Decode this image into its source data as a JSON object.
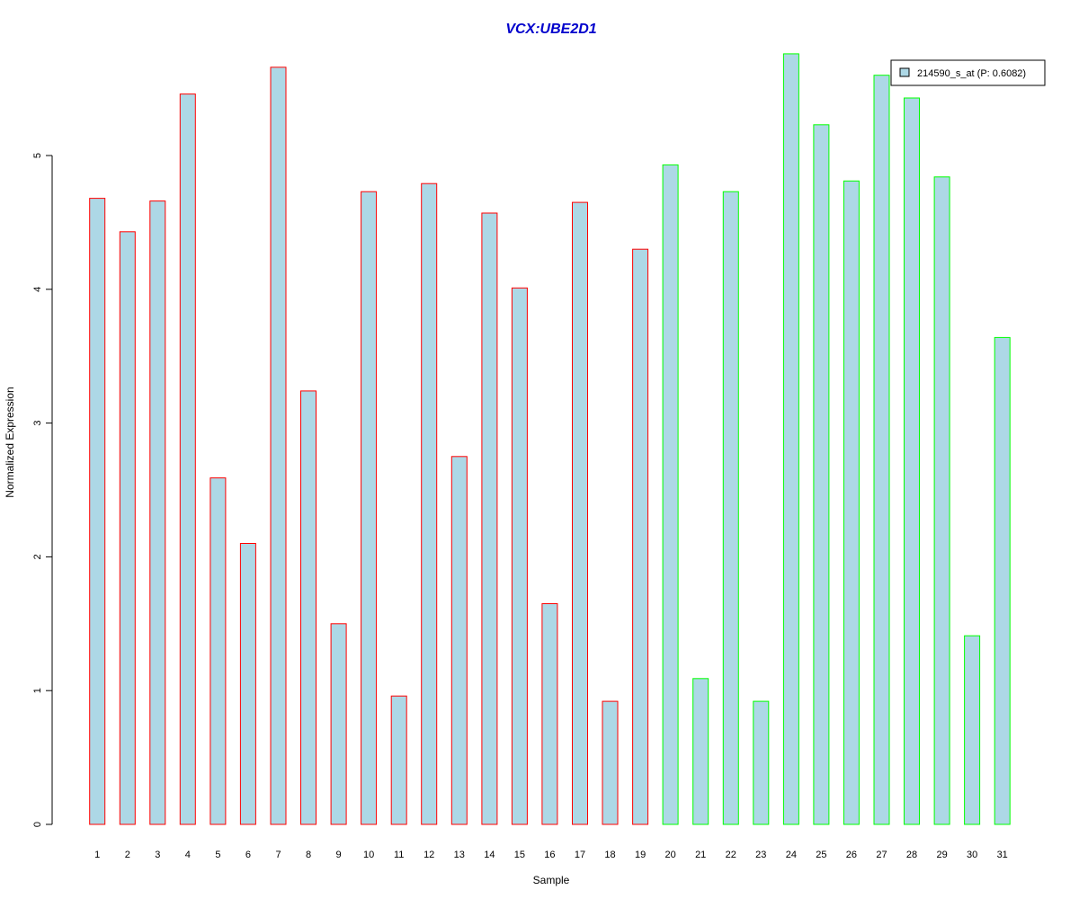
{
  "chart_data": {
    "type": "bar",
    "title": "VCX:UBE2D1",
    "title_color": "#0000CC",
    "xlabel": "Sample",
    "ylabel": "Normalized Expression",
    "ylim": [
      0,
      5.8
    ],
    "yticks": [
      0,
      1,
      2,
      3,
      4,
      5
    ],
    "grid": false,
    "legend_position": "top-right",
    "fill_color": "#ADD8E6",
    "categories": [
      "1",
      "2",
      "3",
      "4",
      "5",
      "6",
      "7",
      "8",
      "9",
      "10",
      "11",
      "12",
      "13",
      "14",
      "15",
      "16",
      "17",
      "18",
      "19",
      "20",
      "21",
      "22",
      "23",
      "24",
      "25",
      "26",
      "27",
      "28",
      "29",
      "30",
      "31"
    ],
    "series": [
      {
        "name": "214590_s_at (P: 0.6082)",
        "values": [
          4.68,
          4.43,
          4.66,
          5.46,
          2.59,
          2.1,
          5.66,
          3.24,
          1.5,
          4.73,
          0.96,
          4.79,
          2.75,
          4.57,
          4.01,
          1.65,
          4.65,
          0.92,
          4.3,
          4.93,
          1.09,
          4.73,
          0.92,
          5.76,
          5.23,
          4.81,
          5.6,
          5.43,
          4.84,
          1.41,
          3.64
        ],
        "border_colors": [
          "#FF0000",
          "#FF0000",
          "#FF0000",
          "#FF0000",
          "#FF0000",
          "#FF0000",
          "#FF0000",
          "#FF0000",
          "#FF0000",
          "#FF0000",
          "#FF0000",
          "#FF0000",
          "#FF0000",
          "#FF0000",
          "#FF0000",
          "#FF0000",
          "#FF0000",
          "#FF0000",
          "#FF0000",
          "#00FF00",
          "#00FF00",
          "#00FF00",
          "#00FF00",
          "#00FF00",
          "#00FF00",
          "#00FF00",
          "#00FF00",
          "#00FF00",
          "#00FF00",
          "#00FF00",
          "#00FF00"
        ]
      }
    ]
  }
}
